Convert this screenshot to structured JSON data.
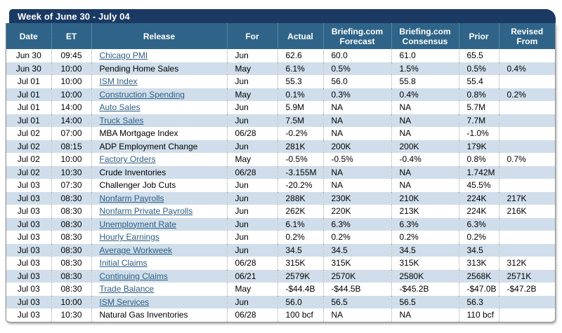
{
  "title": "Week of June 30 - July 04",
  "columns": [
    "Date",
    "ET",
    "Release",
    "For",
    "Actual",
    "Briefing.com\nForecast",
    "Briefing.com\nConsensus",
    "Prior",
    "Revised\nFrom"
  ],
  "colors": {
    "title_bar": "#1a3a64",
    "header_row": "#2f6488",
    "alt_row": "#cfdeea",
    "link": "#2e5e85"
  },
  "rows": [
    {
      "date": "Jun 30",
      "et": "09:45",
      "release": "Chicago PMI",
      "link": true,
      "period": "Jun",
      "actual": "62.6",
      "forecast": "60.0",
      "consensus": "61.0",
      "prior": "65.5",
      "revised": ""
    },
    {
      "date": "Jun 30",
      "et": "10:00",
      "release": "Pending Home Sales",
      "link": false,
      "period": "May",
      "actual": "6.1%",
      "forecast": "0.5%",
      "consensus": "1.5%",
      "prior": "0.5%",
      "revised": "0.4%"
    },
    {
      "date": "Jul 01",
      "et": "10:00",
      "release": "ISM Index",
      "link": true,
      "period": "Jun",
      "actual": "55.3",
      "forecast": "56.0",
      "consensus": "55.8",
      "prior": "55.4",
      "revised": ""
    },
    {
      "date": "Jul 01",
      "et": "10:00",
      "release": "Construction Spending",
      "link": true,
      "period": "May",
      "actual": "0.1%",
      "forecast": "0.3%",
      "consensus": "0.4%",
      "prior": "0.8%",
      "revised": "0.2%"
    },
    {
      "date": "Jul 01",
      "et": "14:00",
      "release": "Auto Sales",
      "link": true,
      "period": "Jun",
      "actual": "5.9M",
      "forecast": "NA",
      "consensus": "NA",
      "prior": "5.7M",
      "revised": ""
    },
    {
      "date": "Jul 01",
      "et": "14:00",
      "release": "Truck Sales",
      "link": true,
      "period": "Jun",
      "actual": "7.5M",
      "forecast": "NA",
      "consensus": "NA",
      "prior": "7.7M",
      "revised": ""
    },
    {
      "date": "Jul 02",
      "et": "07:00",
      "release": "MBA Mortgage Index",
      "link": false,
      "period": "06/28",
      "actual": "-0.2%",
      "forecast": "NA",
      "consensus": "NA",
      "prior": "-1.0%",
      "revised": ""
    },
    {
      "date": "Jul 02",
      "et": "08:15",
      "release": "ADP Employment Change",
      "link": false,
      "period": "Jun",
      "actual": "281K",
      "forecast": "200K",
      "consensus": "200K",
      "prior": "179K",
      "revised": ""
    },
    {
      "date": "Jul 02",
      "et": "10:00",
      "release": "Factory Orders",
      "link": true,
      "period": "May",
      "actual": "-0.5%",
      "forecast": "-0.5%",
      "consensus": "-0.4%",
      "prior": "0.8%",
      "revised": "0.7%"
    },
    {
      "date": "Jul 02",
      "et": "10:30",
      "release": "Crude Inventories",
      "link": false,
      "period": "06/28",
      "actual": "-3.155M",
      "forecast": "NA",
      "consensus": "NA",
      "prior": "1.742M",
      "revised": ""
    },
    {
      "date": "Jul 03",
      "et": "07:30",
      "release": "Challenger Job Cuts",
      "link": false,
      "period": "Jun",
      "actual": "-20.2%",
      "forecast": "NA",
      "consensus": "NA",
      "prior": "45.5%",
      "revised": ""
    },
    {
      "date": "Jul 03",
      "et": "08:30",
      "release": "Nonfarm Payrolls",
      "link": true,
      "period": "Jun",
      "actual": "288K",
      "forecast": "230K",
      "consensus": "210K",
      "prior": "224K",
      "revised": "217K"
    },
    {
      "date": "Jul 03",
      "et": "08:30",
      "release": "Nonfarm Private Payrolls",
      "link": true,
      "period": "Jun",
      "actual": "262K",
      "forecast": "220K",
      "consensus": "213K",
      "prior": "224K",
      "revised": "216K"
    },
    {
      "date": "Jul 03",
      "et": "08:30",
      "release": "Unemployment Rate",
      "link": true,
      "period": "Jun",
      "actual": "6.1%",
      "forecast": "6.3%",
      "consensus": "6.3%",
      "prior": "6.3%",
      "revised": ""
    },
    {
      "date": "Jul 03",
      "et": "08:30",
      "release": "Hourly Earnings",
      "link": true,
      "period": "Jun",
      "actual": "0.2%",
      "forecast": "0.2%",
      "consensus": "0.2%",
      "prior": "0.2%",
      "revised": ""
    },
    {
      "date": "Jul 03",
      "et": "08:30",
      "release": "Average Workweek",
      "link": true,
      "period": "Jun",
      "actual": "34.5",
      "forecast": "34.5",
      "consensus": "34.5",
      "prior": "34.5",
      "revised": ""
    },
    {
      "date": "Jul 03",
      "et": "08:30",
      "release": "Initial Claims",
      "link": true,
      "period": "06/28",
      "actual": "315K",
      "forecast": "315K",
      "consensus": "315K",
      "prior": "313K",
      "revised": "312K"
    },
    {
      "date": "Jul 03",
      "et": "08:30",
      "release": "Continuing Claims",
      "link": true,
      "period": "06/21",
      "actual": "2579K",
      "forecast": "2570K",
      "consensus": "2580K",
      "prior": "2568K",
      "revised": "2571K"
    },
    {
      "date": "Jul 03",
      "et": "08:30",
      "release": "Trade Balance",
      "link": true,
      "period": "May",
      "actual": "-$44.4B",
      "forecast": "-$44.5B",
      "consensus": "-$45.2B",
      "prior": "-$47.0B",
      "revised": "-$47.2B"
    },
    {
      "date": "Jul 03",
      "et": "10:00",
      "release": "ISM Services",
      "link": true,
      "period": "Jun",
      "actual": "56.0",
      "forecast": "56.5",
      "consensus": "56.5",
      "prior": "56.3",
      "revised": ""
    },
    {
      "date": "Jul 03",
      "et": "10:30",
      "release": "Natural Gas Inventories",
      "link": false,
      "period": "06/28",
      "actual": "100 bcf",
      "forecast": "NA",
      "consensus": "NA",
      "prior": "110 bcf",
      "revised": ""
    }
  ]
}
